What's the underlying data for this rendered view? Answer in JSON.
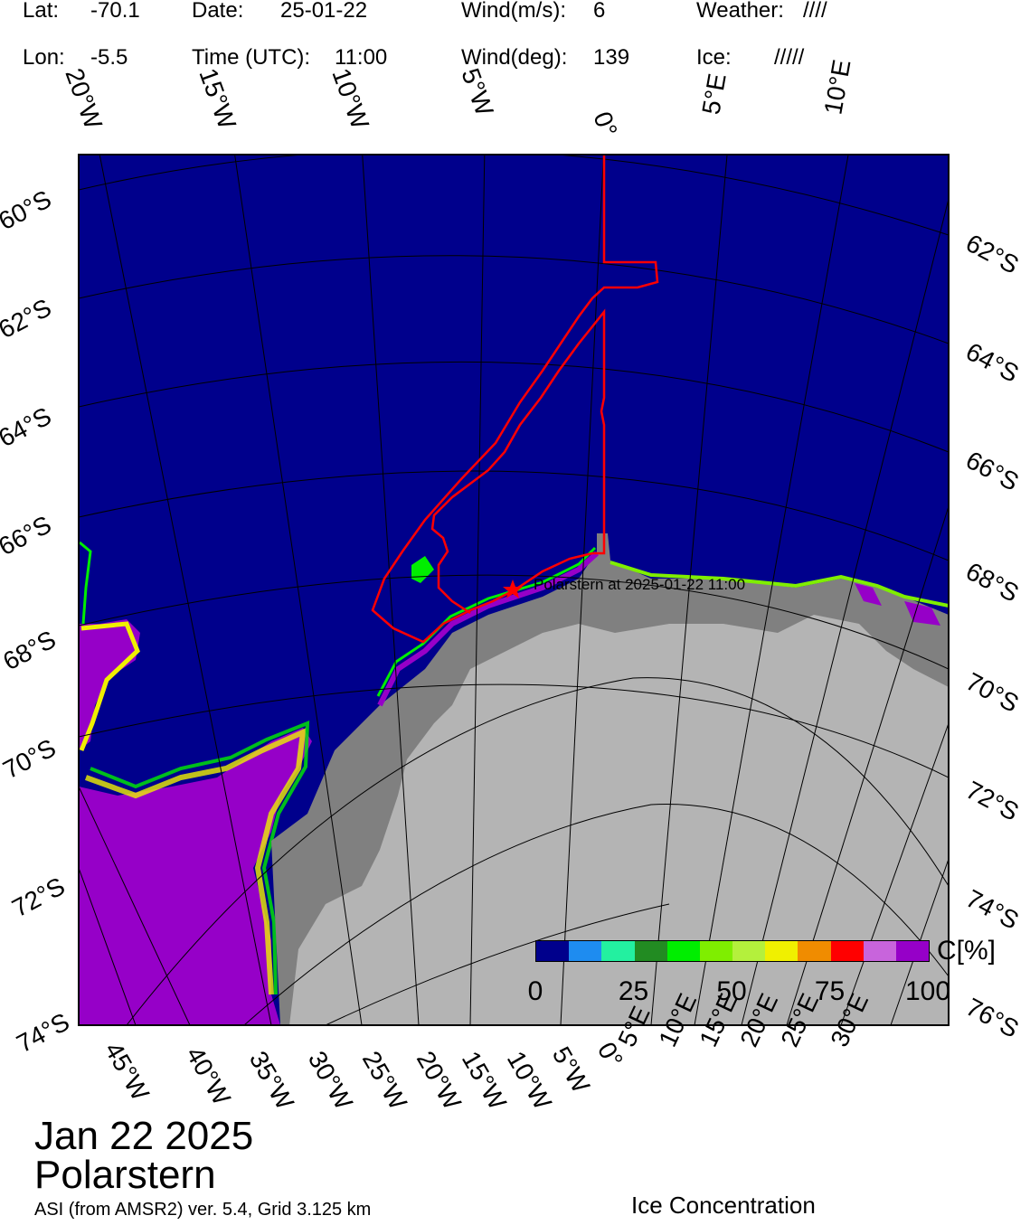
{
  "header": {
    "lat_label": "Lat:",
    "lat_value": "-70.1",
    "lon_label": "Lon:",
    "lon_value": "-5.5",
    "date_label": "Date:",
    "date_value": "25-01-22",
    "time_label": "Time (UTC):",
    "time_value": "11:00",
    "wind_speed_label": "Wind(m/s):",
    "wind_speed_value": "6",
    "wind_dir_label": "Wind(deg):",
    "wind_dir_value": "139",
    "weather_label": "Weather:",
    "weather_value": "////",
    "ice_label": "Ice:",
    "ice_value": "/////"
  },
  "map": {
    "top_lon_labels": [
      "20°W",
      "15°W",
      "10°W",
      "5°W",
      "0°",
      "5°E",
      "10°E"
    ],
    "left_lat_labels": [
      "60°S",
      "62°S",
      "64°S",
      "66°S",
      "68°S",
      "70°S",
      "72°S",
      "74°S"
    ],
    "right_lat_labels": [
      "62°S",
      "64°S",
      "66°S",
      "68°S",
      "70°S",
      "72°S",
      "74°S",
      "76°S"
    ],
    "bottom_lon_labels": [
      "45°W",
      "40°W",
      "35°W",
      "30°W",
      "25°W",
      "20°W",
      "15°W",
      "10°W",
      "5°W",
      "0°",
      "5°E",
      "10°E",
      "15°E",
      "20°E",
      "25°E",
      "30°E"
    ],
    "ship_marker_label": "Polarstern at 2025-01-22 11:00",
    "colors": {
      "ocean": "#00008c",
      "land": "#b4b4b4",
      "ice_shelf": "#808080",
      "track": "#ff0000"
    }
  },
  "title": {
    "date": "Jan 22 2025",
    "vessel": "Polarstern"
  },
  "footnote": "ASI (from AMSR2) ver. 5.4,  Grid 3.125 km",
  "colorbar": {
    "colors": [
      "#00008c",
      "#1e8cf0",
      "#23f0a0",
      "#228b22",
      "#00ee00",
      "#7fee00",
      "#b4f03c",
      "#f0f000",
      "#f08c00",
      "#ff0000",
      "#c864dc",
      "#9600c8"
    ],
    "ticks": [
      "0",
      "25",
      "50",
      "75",
      "100"
    ],
    "unit": "C[%]",
    "label": "Ice Concentration"
  }
}
